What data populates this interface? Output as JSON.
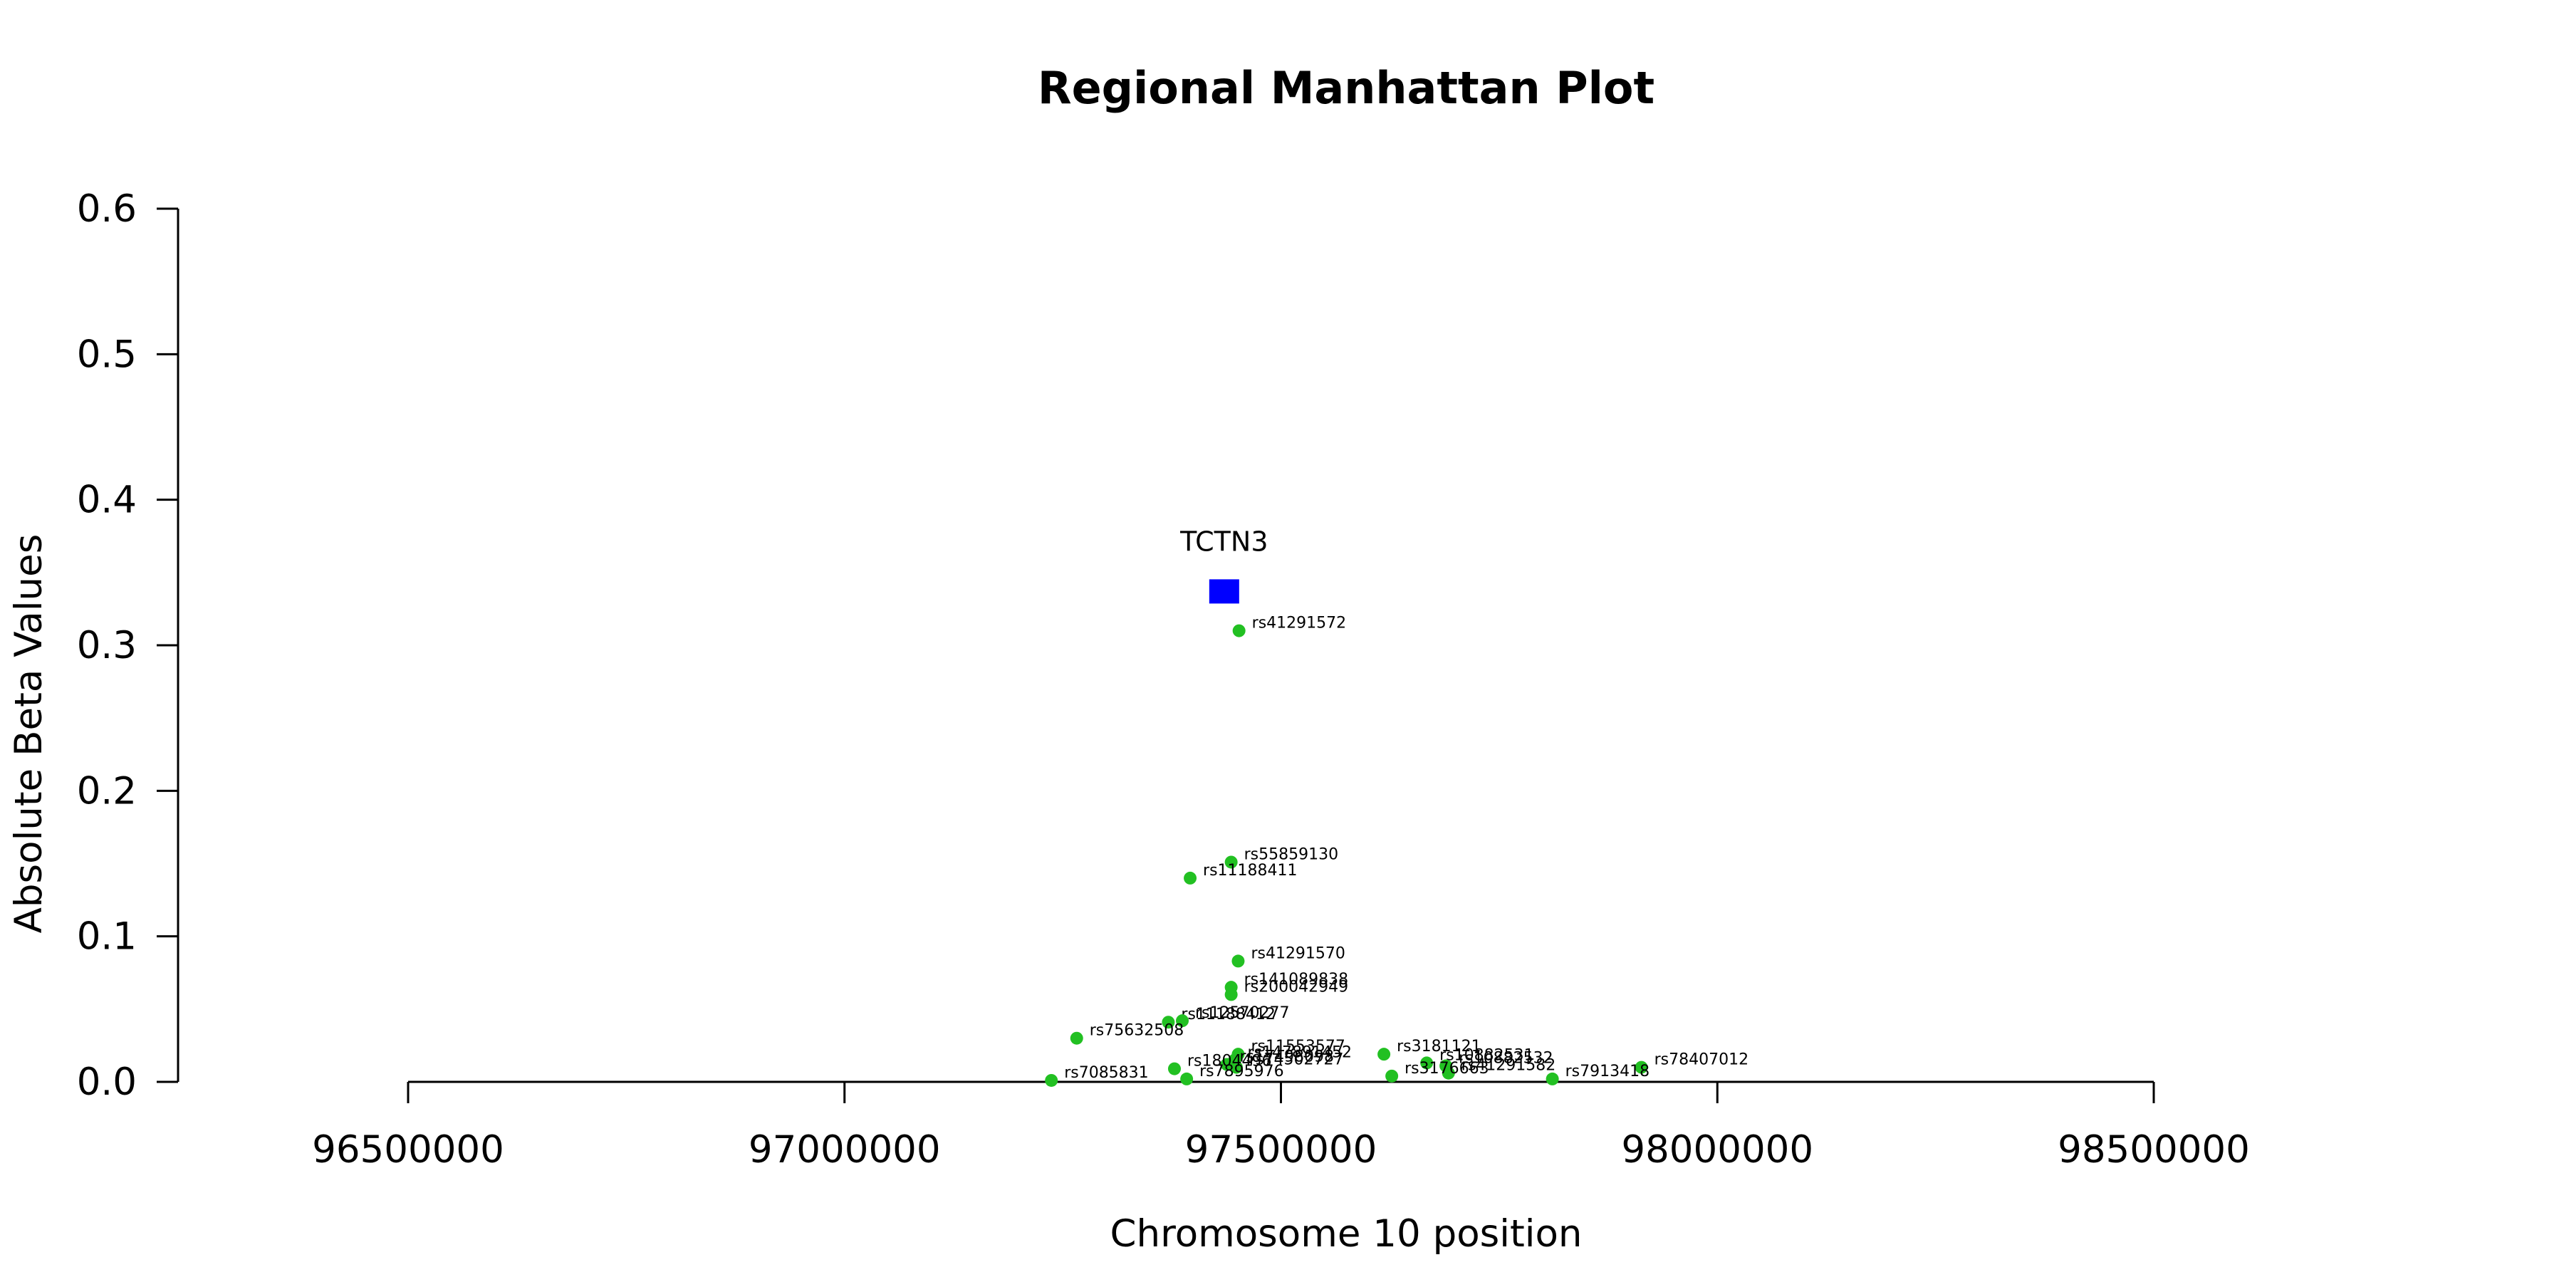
{
  "chart_data": {
    "type": "scatter",
    "title": "Regional Manhattan Plot",
    "xlabel": "Chromosome 10 position",
    "ylabel": "Absolute Beta Values",
    "xlim": [
      96500000,
      98500000
    ],
    "ylim": [
      0,
      0.6
    ],
    "x_ticks": [
      "96500000",
      "97000000",
      "97500000",
      "98000000",
      "98500000"
    ],
    "y_ticks": [
      "0.0",
      "0.1",
      "0.2",
      "0.3",
      "0.4",
      "0.5",
      "0.6"
    ],
    "gene": {
      "name": "TCTN3",
      "x": 97435000,
      "y": 0.337,
      "color": "#0000ff"
    },
    "point_color": "#22c022",
    "snps": [
      {
        "id": "rs41291572",
        "x": 97452000,
        "y": 0.31
      },
      {
        "id": "rs55859130",
        "x": 97443000,
        "y": 0.151
      },
      {
        "id": "rs11188411",
        "x": 97396000,
        "y": 0.14
      },
      {
        "id": "rs41291570",
        "x": 97451000,
        "y": 0.083
      },
      {
        "id": "rs141089838",
        "x": 97443000,
        "y": 0.065
      },
      {
        "id": "rs200042949",
        "x": 97443000,
        "y": 0.06
      },
      {
        "id": "rs11188412",
        "x": 97371000,
        "y": 0.041
      },
      {
        "id": "rs12570277",
        "x": 97387000,
        "y": 0.042
      },
      {
        "id": "rs75632508",
        "x": 97266000,
        "y": 0.03
      },
      {
        "id": "rs11553577",
        "x": 97451000,
        "y": 0.019
      },
      {
        "id": "rs3181121",
        "x": 97618000,
        "y": 0.019
      },
      {
        "id": "rs147891452",
        "x": 97447000,
        "y": 0.015
      },
      {
        "id": "rs17498098",
        "x": 97438000,
        "y": 0.012
      },
      {
        "id": "rs74502727",
        "x": 97449000,
        "y": 0.01
      },
      {
        "id": "rs10882531",
        "x": 97667000,
        "y": 0.013
      },
      {
        "id": "rs10882532",
        "x": 97689000,
        "y": 0.011
      },
      {
        "id": "rs41291582",
        "x": 97692000,
        "y": 0.006
      },
      {
        "id": "rs1804496",
        "x": 97378000,
        "y": 0.009
      },
      {
        "id": "rs3176663",
        "x": 97627000,
        "y": 0.004
      },
      {
        "id": "rs78407012",
        "x": 97913000,
        "y": 0.01
      },
      {
        "id": "rs7913418",
        "x": 97811000,
        "y": 0.002
      },
      {
        "id": "rs7085831",
        "x": 97237000,
        "y": 0.001
      },
      {
        "id": "rs7895976",
        "x": 97392000,
        "y": 0.002
      }
    ]
  }
}
